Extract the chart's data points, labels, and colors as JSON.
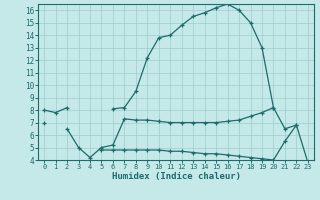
{
  "xlabel": "Humidex (Indice chaleur)",
  "x": [
    0,
    1,
    2,
    3,
    4,
    5,
    6,
    7,
    8,
    9,
    10,
    11,
    12,
    13,
    14,
    15,
    16,
    17,
    18,
    19,
    20,
    21,
    22,
    23
  ],
  "y1": [
    8.0,
    7.8,
    8.2,
    null,
    null,
    null,
    8.1,
    8.2,
    9.5,
    12.2,
    13.8,
    14.0,
    14.8,
    15.5,
    15.8,
    16.2,
    16.5,
    16.0,
    15.0,
    13.0,
    8.2,
    null,
    null,
    null
  ],
  "y2": [
    7.0,
    null,
    6.5,
    5.0,
    4.2,
    5.0,
    5.2,
    7.3,
    7.2,
    7.2,
    7.1,
    7.0,
    7.0,
    7.0,
    7.0,
    7.0,
    7.1,
    7.2,
    7.5,
    7.8,
    8.2,
    6.5,
    6.8,
    null
  ],
  "y3": [
    null,
    null,
    null,
    null,
    null,
    4.8,
    4.8,
    4.8,
    4.8,
    4.8,
    4.8,
    4.7,
    4.7,
    4.6,
    4.5,
    4.5,
    4.4,
    4.3,
    4.2,
    4.1,
    4.0,
    5.5,
    6.8,
    3.8
  ],
  "bg_color": "#c5e8e8",
  "grid_color": "#9ecece",
  "line_color": "#1e6b6b",
  "ylim": [
    4,
    16.5
  ],
  "xlim": [
    -0.5,
    23.5
  ],
  "yticks": [
    4,
    5,
    6,
    7,
    8,
    9,
    10,
    11,
    12,
    13,
    14,
    15,
    16
  ],
  "xticks": [
    0,
    1,
    2,
    3,
    4,
    5,
    6,
    7,
    8,
    9,
    10,
    11,
    12,
    13,
    14,
    15,
    16,
    17,
    18,
    19,
    20,
    21,
    22,
    23
  ]
}
